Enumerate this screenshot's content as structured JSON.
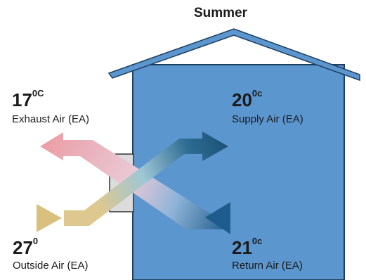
{
  "title": "Summer",
  "colors": {
    "house_fill": "#5b96cf",
    "house_stroke": "#1f3f5e",
    "warm": "#e9a3ab",
    "cool": "#1f5a88",
    "outside": "#d8bf86"
  },
  "exhaust": {
    "value": "17",
    "unit": "0C",
    "label": "Exhaust Air (EA)"
  },
  "supply": {
    "value": "20",
    "unit": "0c",
    "label": "Supply Air (EA)"
  },
  "outside": {
    "value": "27",
    "unit": "0",
    "label": "Outside Air (EA)"
  },
  "return": {
    "value": "21",
    "unit": "0c",
    "label": "Return Air (EA)"
  }
}
